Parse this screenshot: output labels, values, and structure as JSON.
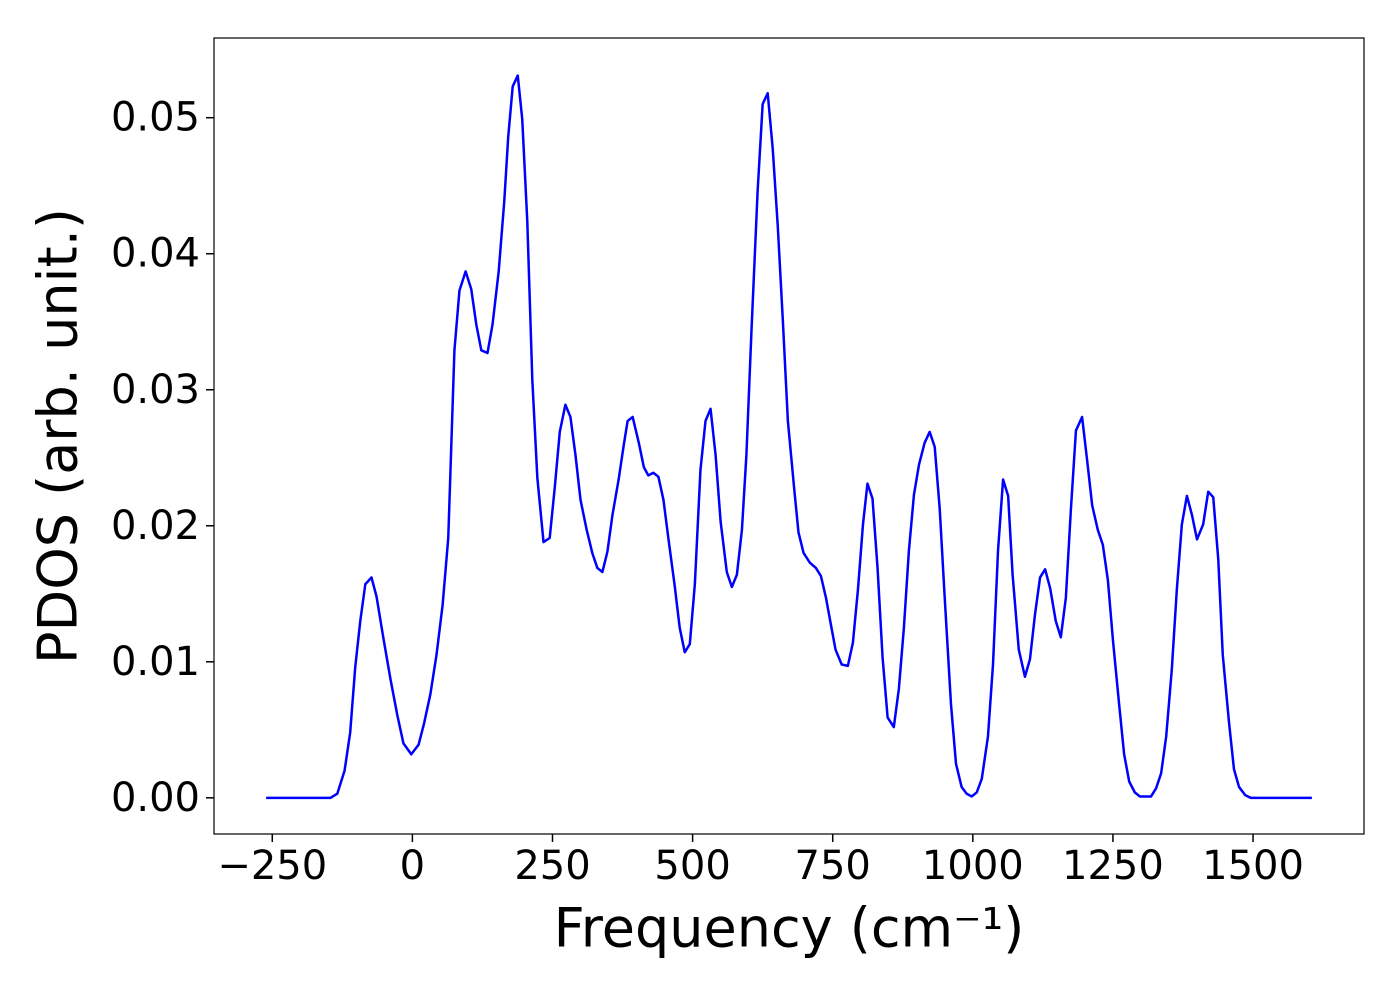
{
  "chart_data": {
    "type": "line",
    "xlabel": "Frequency (cm⁻¹)",
    "ylabel": "PDOS (arb. unit.)",
    "xlim": [
      -354,
      1698
    ],
    "ylim": [
      -0.00266,
      0.05586
    ],
    "xticks": [
      {
        "value": -250,
        "label": "−250"
      },
      0,
      250,
      500,
      750,
      1000,
      1250,
      1500
    ],
    "yticks": [
      {
        "value": 0,
        "label": "0.00"
      },
      {
        "value": 0.01,
        "label": "0.01"
      },
      {
        "value": 0.02,
        "label": "0.02"
      },
      {
        "value": 0.03,
        "label": "0.03"
      },
      {
        "value": 0.04,
        "label": "0.04"
      },
      {
        "value": 0.05,
        "label": "0.05"
      }
    ],
    "series": [
      {
        "color": "#0000ff",
        "x": [
          -261,
          -146,
          -134,
          -121,
          -111,
          -102,
          -93,
          -84,
          -73,
          -64,
          -52,
          -39,
          -27,
          -16,
          -2,
          11,
          21,
          32,
          43,
          54,
          64,
          75,
          84,
          95,
          105,
          114,
          123,
          134,
          143,
          154,
          164,
          171,
          179,
          188,
          196,
          205,
          214,
          223,
          234,
          245,
          254,
          263,
          273,
          282,
          291,
          300,
          311,
          321,
          330,
          339,
          348,
          357,
          368,
          377,
          384,
          393,
          404,
          413,
          421,
          430,
          439,
          448,
          457,
          468,
          477,
          486,
          495,
          504,
          514,
          523,
          532,
          541,
          550,
          561,
          570,
          579,
          588,
          596,
          605,
          616,
          625,
          634,
          643,
          652,
          661,
          670,
          682,
          689,
          698,
          709,
          720,
          729,
          738,
          746,
          755,
          766,
          777,
          786,
          795,
          804,
          812,
          821,
          830,
          839,
          848,
          859,
          868,
          877,
          886,
          895,
          904,
          914,
          923,
          932,
          941,
          950,
          961,
          970,
          980,
          989,
          998,
          1007,
          1016,
          1027,
          1036,
          1045,
          1054,
          1063,
          1071,
          1082,
          1093,
          1102,
          1111,
          1120,
          1129,
          1138,
          1148,
          1157,
          1166,
          1175,
          1184,
          1195,
          1204,
          1213,
          1223,
          1232,
          1241,
          1250,
          1261,
          1270,
          1279,
          1289,
          1298,
          1309,
          1318,
          1327,
          1336,
          1345,
          1355,
          1364,
          1373,
          1382,
          1391,
          1400,
          1411,
          1420,
          1429,
          1438,
          1446,
          1457,
          1466,
          1475,
          1486,
          1496,
          1605
        ],
        "values": [
          0,
          0,
          0.0003,
          0.002,
          0.0048,
          0.0096,
          0.013,
          0.0157,
          0.0162,
          0.0148,
          0.0118,
          0.0087,
          0.0061,
          0.004,
          0.0032,
          0.0039,
          0.0055,
          0.0076,
          0.0105,
          0.0142,
          0.0191,
          0.0329,
          0.0373,
          0.0387,
          0.0374,
          0.0348,
          0.0329,
          0.0327,
          0.0348,
          0.0387,
          0.0439,
          0.0486,
          0.0523,
          0.0531,
          0.0499,
          0.0424,
          0.0307,
          0.0235,
          0.0188,
          0.0191,
          0.0228,
          0.0269,
          0.0289,
          0.028,
          0.0252,
          0.0219,
          0.0197,
          0.018,
          0.0169,
          0.0166,
          0.0181,
          0.0208,
          0.0234,
          0.0259,
          0.0277,
          0.028,
          0.0261,
          0.0243,
          0.0237,
          0.0239,
          0.0236,
          0.0219,
          0.019,
          0.0156,
          0.0125,
          0.0107,
          0.0113,
          0.0157,
          0.0241,
          0.0277,
          0.0286,
          0.0252,
          0.0203,
          0.0166,
          0.0155,
          0.0164,
          0.0197,
          0.0252,
          0.0343,
          0.0446,
          0.051,
          0.0518,
          0.0477,
          0.042,
          0.0351,
          0.0277,
          0.0224,
          0.0195,
          0.018,
          0.0173,
          0.0169,
          0.0163,
          0.0147,
          0.0129,
          0.0109,
          0.0098,
          0.0097,
          0.0114,
          0.0153,
          0.0201,
          0.0231,
          0.022,
          0.0169,
          0.0103,
          0.0059,
          0.0052,
          0.008,
          0.0125,
          0.0182,
          0.0223,
          0.0245,
          0.0261,
          0.0269,
          0.0258,
          0.0212,
          0.0146,
          0.0069,
          0.0025,
          0.0008,
          0.0003,
          0.0001,
          0.0004,
          0.0014,
          0.0045,
          0.0098,
          0.0182,
          0.0234,
          0.0222,
          0.0164,
          0.0109,
          0.0089,
          0.0102,
          0.0135,
          0.0162,
          0.0168,
          0.0154,
          0.013,
          0.0118,
          0.0147,
          0.0212,
          0.027,
          0.028,
          0.0248,
          0.0215,
          0.0197,
          0.0186,
          0.016,
          0.0116,
          0.0069,
          0.0032,
          0.0012,
          0.0004,
          0.0001,
          0.0001,
          0.0001,
          0.0007,
          0.0018,
          0.0045,
          0.0094,
          0.0153,
          0.0201,
          0.0222,
          0.0208,
          0.019,
          0.0201,
          0.0225,
          0.0221,
          0.0175,
          0.0105,
          0.0056,
          0.0021,
          0.0008,
          0.0002,
          0,
          0
        ]
      }
    ]
  }
}
